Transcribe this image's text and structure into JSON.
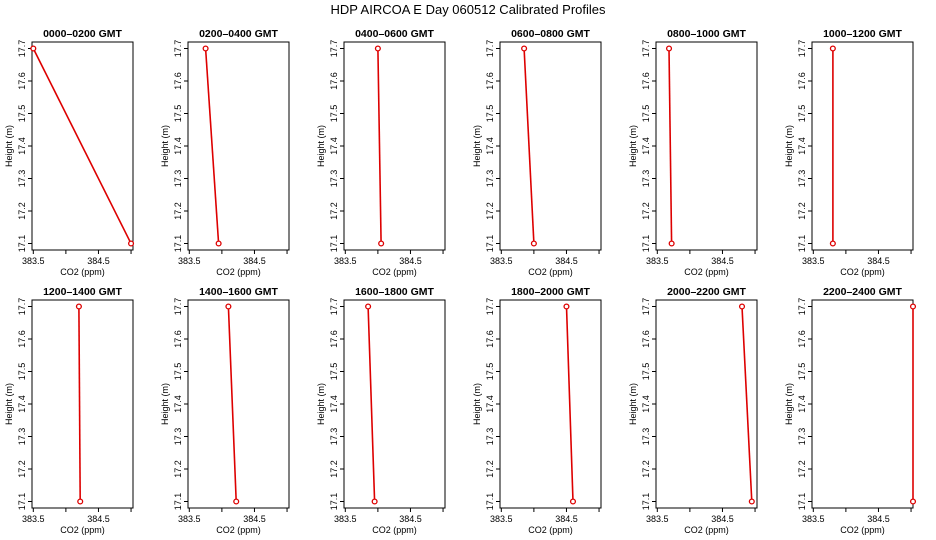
{
  "figure_title": "HDP  AIRCOA E  Day 060512  Calibrated Profiles",
  "chart_data": [
    {
      "type": "line",
      "title": "0000–0200 GMT",
      "xlabel": "CO2 (ppm)",
      "ylabel": "Height (m)",
      "x": [
        383.5,
        385.0
      ],
      "y": [
        17.7,
        17.1
      ],
      "xlim": [
        383.48,
        385.03
      ],
      "ylim": [
        17.08,
        17.72
      ],
      "xticks": [
        "383.5",
        "384.5"
      ],
      "yticks": [
        "17.1",
        "17.2",
        "17.3",
        "17.4",
        "17.5",
        "17.6",
        "17.7"
      ],
      "color": "#dd0000"
    },
    {
      "type": "line",
      "title": "0200–0400 GMT",
      "xlabel": "CO2 (ppm)",
      "ylabel": "Height (m)",
      "x": [
        383.75,
        383.95
      ],
      "y": [
        17.7,
        17.1
      ],
      "xlim": [
        383.48,
        385.03
      ],
      "ylim": [
        17.08,
        17.72
      ],
      "xticks": [
        "383.5",
        "384.5"
      ],
      "yticks": [
        "17.1",
        "17.2",
        "17.3",
        "17.4",
        "17.5",
        "17.6",
        "17.7"
      ],
      "color": "#dd0000"
    },
    {
      "type": "line",
      "title": "0400–0600 GMT",
      "xlabel": "CO2 (ppm)",
      "ylabel": "Height (m)",
      "x": [
        384.0,
        384.05
      ],
      "y": [
        17.7,
        17.1
      ],
      "xlim": [
        383.48,
        385.03
      ],
      "ylim": [
        17.08,
        17.72
      ],
      "xticks": [
        "383.5",
        "384.5"
      ],
      "yticks": [
        "17.1",
        "17.2",
        "17.3",
        "17.4",
        "17.5",
        "17.6",
        "17.7"
      ],
      "color": "#dd0000"
    },
    {
      "type": "line",
      "title": "0600–0800 GMT",
      "xlabel": "CO2 (ppm)",
      "ylabel": "Height (m)",
      "x": [
        383.85,
        384.0
      ],
      "y": [
        17.7,
        17.1
      ],
      "xlim": [
        383.48,
        385.03
      ],
      "ylim": [
        17.08,
        17.72
      ],
      "xticks": [
        "383.5",
        "384.5"
      ],
      "yticks": [
        "17.1",
        "17.2",
        "17.3",
        "17.4",
        "17.5",
        "17.6",
        "17.7"
      ],
      "color": "#dd0000"
    },
    {
      "type": "line",
      "title": "0800–1000 GMT",
      "xlabel": "CO2 (ppm)",
      "ylabel": "Height (m)",
      "x": [
        383.68,
        383.72
      ],
      "y": [
        17.7,
        17.1
      ],
      "xlim": [
        383.48,
        385.03
      ],
      "ylim": [
        17.08,
        17.72
      ],
      "xticks": [
        "383.5",
        "384.5"
      ],
      "yticks": [
        "17.1",
        "17.2",
        "17.3",
        "17.4",
        "17.5",
        "17.6",
        "17.7"
      ],
      "color": "#dd0000"
    },
    {
      "type": "line",
      "title": "1000–1200 GMT",
      "xlabel": "CO2 (ppm)",
      "ylabel": "Height (m)",
      "x": [
        383.8,
        383.8
      ],
      "y": [
        17.7,
        17.1
      ],
      "xlim": [
        383.48,
        385.03
      ],
      "ylim": [
        17.08,
        17.72
      ],
      "xticks": [
        "383.5",
        "384.5"
      ],
      "yticks": [
        "17.1",
        "17.2",
        "17.3",
        "17.4",
        "17.5",
        "17.6",
        "17.7"
      ],
      "color": "#dd0000"
    },
    {
      "type": "line",
      "title": "1200–1400 GMT",
      "xlabel": "CO2 (ppm)",
      "ylabel": "Height (m)",
      "x": [
        384.2,
        384.22
      ],
      "y": [
        17.7,
        17.1
      ],
      "xlim": [
        383.48,
        385.03
      ],
      "ylim": [
        17.08,
        17.72
      ],
      "xticks": [
        "383.5",
        "384.5"
      ],
      "yticks": [
        "17.1",
        "17.2",
        "17.3",
        "17.4",
        "17.5",
        "17.6",
        "17.7"
      ],
      "color": "#dd0000"
    },
    {
      "type": "line",
      "title": "1400–1600 GMT",
      "xlabel": "CO2 (ppm)",
      "ylabel": "Height (m)",
      "x": [
        384.1,
        384.22
      ],
      "y": [
        17.7,
        17.1
      ],
      "xlim": [
        383.48,
        385.03
      ],
      "ylim": [
        17.08,
        17.72
      ],
      "xticks": [
        "383.5",
        "384.5"
      ],
      "yticks": [
        "17.1",
        "17.2",
        "17.3",
        "17.4",
        "17.5",
        "17.6",
        "17.7"
      ],
      "color": "#dd0000"
    },
    {
      "type": "line",
      "title": "1600–1800 GMT",
      "xlabel": "CO2 (ppm)",
      "ylabel": "Height (m)",
      "x": [
        383.85,
        383.95
      ],
      "y": [
        17.7,
        17.1
      ],
      "xlim": [
        383.48,
        385.03
      ],
      "ylim": [
        17.08,
        17.72
      ],
      "xticks": [
        "383.5",
        "384.5"
      ],
      "yticks": [
        "17.1",
        "17.2",
        "17.3",
        "17.4",
        "17.5",
        "17.6",
        "17.7"
      ],
      "color": "#dd0000"
    },
    {
      "type": "line",
      "title": "1800–2000 GMT",
      "xlabel": "CO2 (ppm)",
      "ylabel": "Height (m)",
      "x": [
        384.5,
        384.6
      ],
      "y": [
        17.7,
        17.1
      ],
      "xlim": [
        383.48,
        385.03
      ],
      "ylim": [
        17.08,
        17.72
      ],
      "xticks": [
        "383.5",
        "384.5"
      ],
      "yticks": [
        "17.1",
        "17.2",
        "17.3",
        "17.4",
        "17.5",
        "17.6",
        "17.7"
      ],
      "color": "#dd0000"
    },
    {
      "type": "line",
      "title": "2000–2200 GMT",
      "xlabel": "CO2 (ppm)",
      "ylabel": "Height (m)",
      "x": [
        384.8,
        384.95
      ],
      "y": [
        17.7,
        17.1
      ],
      "xlim": [
        383.48,
        385.03
      ],
      "ylim": [
        17.08,
        17.72
      ],
      "xticks": [
        "383.5",
        "384.5"
      ],
      "yticks": [
        "17.1",
        "17.2",
        "17.3",
        "17.4",
        "17.5",
        "17.6",
        "17.7"
      ],
      "color": "#dd0000"
    },
    {
      "type": "line",
      "title": "2200–2400 GMT",
      "xlabel": "CO2 (ppm)",
      "ylabel": "Height (m)",
      "x": [
        385.03,
        385.03
      ],
      "y": [
        17.7,
        17.1
      ],
      "xlim": [
        383.48,
        385.03
      ],
      "ylim": [
        17.08,
        17.72
      ],
      "xticks": [
        "383.5",
        "384.5"
      ],
      "yticks": [
        "17.1",
        "17.2",
        "17.3",
        "17.4",
        "17.5",
        "17.6",
        "17.7"
      ],
      "color": "#dd0000"
    }
  ]
}
